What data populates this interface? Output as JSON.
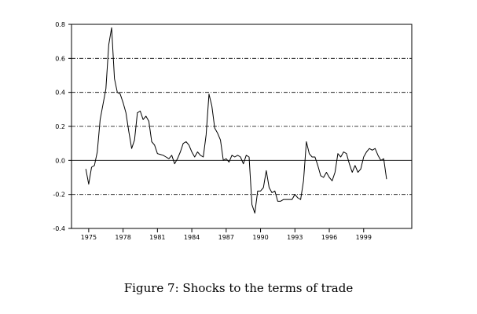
{
  "caption": "Figure 7: Shocks to the terms of trade",
  "chart_data": {
    "type": "line",
    "title": "",
    "xlabel": "",
    "ylabel": "",
    "xlim": [
      1973.5,
      2003.2
    ],
    "ylim": [
      -0.4,
      0.8
    ],
    "y_ticks": [
      0.8,
      0.6,
      0.4,
      0.2,
      0.0,
      -0.2,
      -0.4
    ],
    "y_tick_labels": [
      "0.8",
      "0.6",
      "0.4",
      "0.2",
      "0.0",
      "-0.2",
      "-0.4"
    ],
    "x_ticks": [
      1975,
      1978,
      1981,
      1984,
      1987,
      1990,
      1993,
      1996,
      1999
    ],
    "x_tick_labels": [
      "1975",
      "1978",
      "1981",
      "1984",
      "1987",
      "1990",
      "1993",
      "1996",
      "1999"
    ],
    "gridlines_dashdot": [
      0.6,
      0.4,
      0.2,
      -0.2
    ],
    "zero_line": 0.0,
    "series": [
      {
        "name": "",
        "x": [
          1974.75,
          1975.0,
          1975.25,
          1975.5,
          1975.75,
          1976.0,
          1976.25,
          1976.5,
          1976.75,
          1977.0,
          1977.25,
          1977.5,
          1977.75,
          1978.0,
          1978.25,
          1978.5,
          1978.75,
          1979.0,
          1979.25,
          1979.5,
          1979.75,
          1980.0,
          1980.25,
          1980.5,
          1980.75,
          1981.0,
          1981.25,
          1981.5,
          1981.75,
          1982.0,
          1982.25,
          1982.5,
          1982.75,
          1983.0,
          1983.25,
          1983.5,
          1983.75,
          1984.0,
          1984.25,
          1984.5,
          1984.75,
          1985.0,
          1985.25,
          1985.5,
          1985.75,
          1986.0,
          1986.25,
          1986.5,
          1986.75,
          1987.0,
          1987.25,
          1987.5,
          1987.75,
          1988.0,
          1988.25,
          1988.5,
          1988.75,
          1989.0,
          1989.25,
          1989.5,
          1989.75,
          1990.0,
          1990.25,
          1990.5,
          1990.75,
          1991.0,
          1991.25,
          1991.5,
          1991.75,
          1992.0,
          1992.25,
          1992.5,
          1992.75,
          1993.0,
          1993.25,
          1993.5,
          1993.75,
          1994.0,
          1994.25,
          1994.5,
          1994.75,
          1995.0,
          1995.25,
          1995.5,
          1995.75,
          1996.0,
          1996.25,
          1996.5,
          1996.75,
          1997.0,
          1997.25,
          1997.5,
          1997.75,
          1998.0,
          1998.25,
          1998.5,
          1998.75,
          1999.0,
          1999.25,
          1999.5,
          1999.75,
          2000.0,
          2000.25,
          2000.5,
          2000.75,
          2001.0
        ],
        "values": [
          -0.05,
          -0.14,
          -0.04,
          -0.03,
          0.05,
          0.24,
          0.33,
          0.42,
          0.68,
          0.78,
          0.48,
          0.4,
          0.39,
          0.34,
          0.28,
          0.17,
          0.07,
          0.12,
          0.28,
          0.29,
          0.24,
          0.26,
          0.23,
          0.11,
          0.09,
          0.04,
          0.035,
          0.03,
          0.02,
          0.01,
          0.03,
          -0.02,
          0.01,
          0.05,
          0.1,
          0.11,
          0.09,
          0.05,
          0.02,
          0.05,
          0.03,
          0.02,
          0.15,
          0.39,
          0.32,
          0.19,
          0.16,
          0.12,
          0.0,
          0.01,
          -0.01,
          0.03,
          0.02,
          0.03,
          0.02,
          -0.02,
          0.03,
          0.02,
          -0.26,
          -0.31,
          -0.18,
          -0.18,
          -0.16,
          -0.06,
          -0.16,
          -0.19,
          -0.18,
          -0.24,
          -0.24,
          -0.23,
          -0.23,
          -0.23,
          -0.23,
          -0.2,
          -0.22,
          -0.23,
          -0.12,
          0.11,
          0.04,
          0.02,
          0.02,
          -0.03,
          -0.09,
          -0.1,
          -0.07,
          -0.1,
          -0.12,
          -0.07,
          0.04,
          0.02,
          0.05,
          0.04,
          -0.02,
          -0.07,
          -0.03,
          -0.07,
          -0.05,
          0.02,
          0.05,
          0.07,
          0.06,
          0.07,
          0.03,
          0.0,
          0.01,
          -0.11
        ]
      }
    ]
  }
}
